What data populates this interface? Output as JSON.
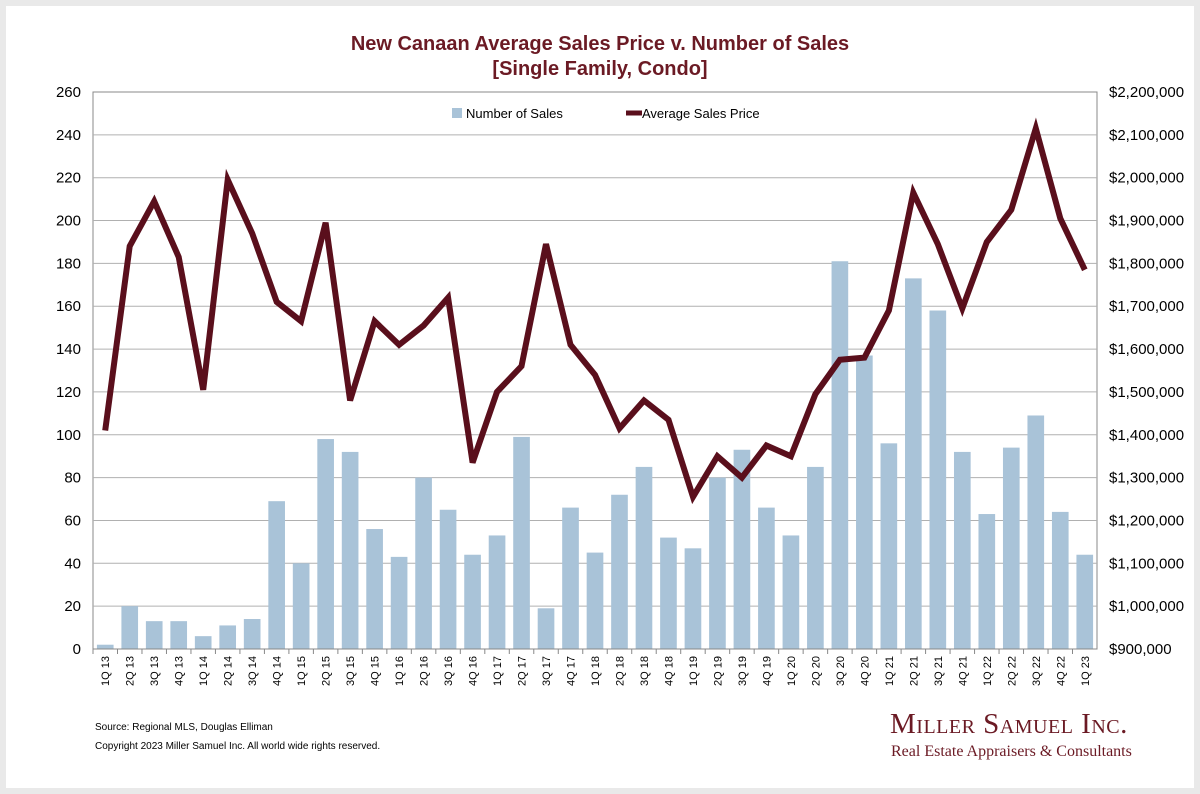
{
  "title_line1": "New Canaan Average Sales Price v. Number of Sales",
  "title_line2": "[Single Family, Condo]",
  "footer": {
    "source": "Source: Regional MLS, Douglas Elliman",
    "copyright": "Copyright 2023 Miller Samuel Inc.  All world wide rights reserved."
  },
  "logo": {
    "name": "Miller Samuel Inc.",
    "tagline": "Real Estate Appraisers & Consultants"
  },
  "colors": {
    "bar": "#a9c3d8",
    "line": "#5a0f1c",
    "title": "#6b1a24",
    "grid": "#b0b0b0"
  },
  "chart_data": {
    "type": "bar",
    "title": "New Canaan Average Sales Price v. Number of Sales [Single Family, Condo]",
    "categories": [
      "1Q 13",
      "2Q 13",
      "3Q 13",
      "4Q 13",
      "1Q 14",
      "2Q 14",
      "3Q 14",
      "4Q 14",
      "1Q 15",
      "2Q 15",
      "3Q 15",
      "4Q 15",
      "1Q 16",
      "2Q 16",
      "3Q 16",
      "4Q 16",
      "1Q 17",
      "2Q 17",
      "3Q 17",
      "4Q 17",
      "1Q 18",
      "2Q 18",
      "3Q 18",
      "4Q 18",
      "1Q 19",
      "2Q 19",
      "3Q 19",
      "4Q 19",
      "1Q 20",
      "2Q 20",
      "3Q 20",
      "4Q 20",
      "1Q 21",
      "2Q 21",
      "3Q 21",
      "4Q 21",
      "1Q 22",
      "2Q 22",
      "3Q 22",
      "4Q 22",
      "1Q 23"
    ],
    "series": [
      {
        "name": "Number of Sales",
        "type": "bar",
        "axis": "left",
        "values": [
          2,
          20,
          13,
          13,
          6,
          11,
          14,
          69,
          40,
          98,
          92,
          56,
          43,
          80,
          65,
          44,
          53,
          99,
          19,
          66,
          45,
          72,
          85,
          52,
          47,
          80,
          93,
          66,
          53,
          85,
          181,
          137,
          96,
          173,
          158,
          92,
          63,
          94,
          109,
          64,
          44
        ]
      },
      {
        "name": "Average Sales Price",
        "type": "line",
        "axis": "right",
        "values": [
          1410000,
          1840000,
          1945000,
          1815000,
          1505000,
          1995000,
          1870000,
          1710000,
          1665000,
          1895000,
          1480000,
          1665000,
          1610000,
          1655000,
          1720000,
          1335000,
          1500000,
          1560000,
          1845000,
          1610000,
          1540000,
          1415000,
          1480000,
          1435000,
          1255000,
          1350000,
          1300000,
          1375000,
          1350000,
          1495000,
          1575000,
          1580000,
          1690000,
          1965000,
          1845000,
          1695000,
          1850000,
          1925000,
          2115000,
          1905000,
          1785000
        ]
      }
    ],
    "y_left": {
      "min": 0,
      "max": 260,
      "step": 20,
      "ticks": [
        "0",
        "20",
        "40",
        "60",
        "80",
        "100",
        "120",
        "140",
        "160",
        "180",
        "200",
        "220",
        "240",
        "260"
      ]
    },
    "y_right": {
      "min": 900000,
      "max": 2200000,
      "step": 100000,
      "ticks": [
        "$900,000",
        "$1,000,000",
        "$1,100,000",
        "$1,200,000",
        "$1,300,000",
        "$1,400,000",
        "$1,500,000",
        "$1,600,000",
        "$1,700,000",
        "$1,800,000",
        "$1,900,000",
        "$2,000,000",
        "$2,100,000",
        "$2,200,000"
      ]
    },
    "grid": true,
    "legend_placement": "top-center"
  }
}
